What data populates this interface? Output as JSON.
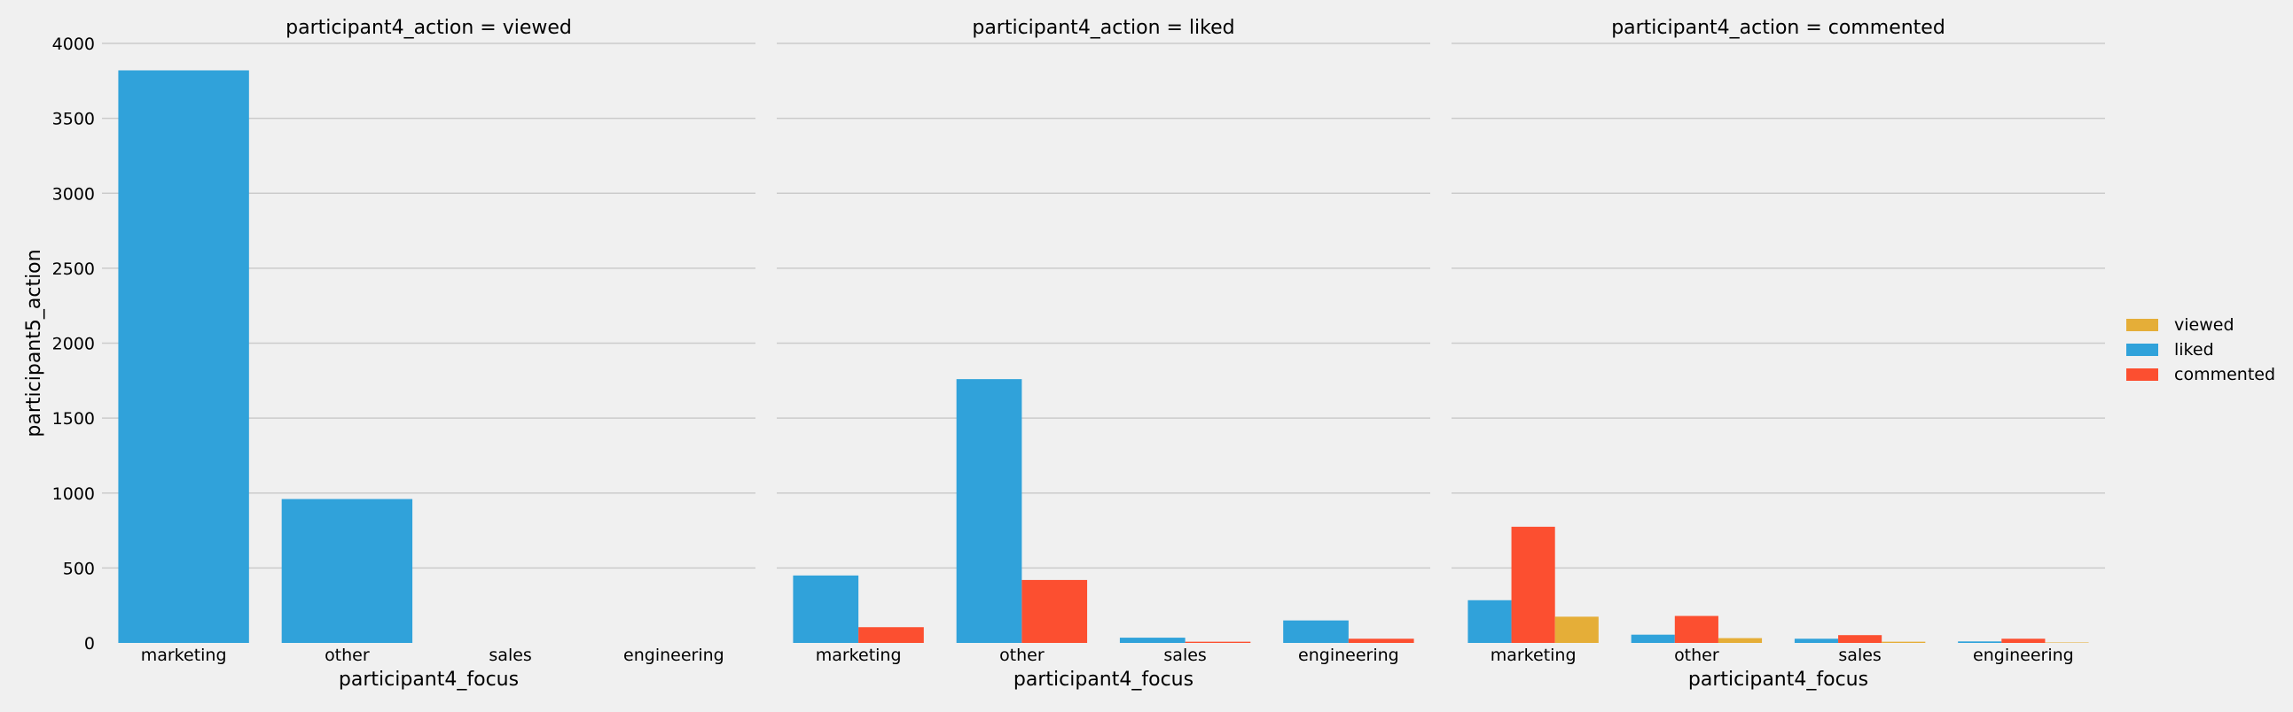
{
  "chart_data": {
    "type": "bar",
    "ylabel": "participant5_action",
    "ylim": [
      0,
      4000
    ],
    "yticks": [
      0,
      500,
      1000,
      1500,
      2000,
      2500,
      3000,
      3500,
      4000
    ],
    "categories": [
      "marketing",
      "other",
      "sales",
      "engineering"
    ],
    "legend": {
      "placement": "right",
      "entries": [
        "viewed",
        "liked",
        "commented"
      ]
    },
    "colors": {
      "viewed": "#e5ae38",
      "liked": "#30a2da",
      "commented": "#fc4f30",
      "grid": "#cbcbcb",
      "background": "#f0f0f0"
    },
    "hue_order": [
      "liked",
      "commented",
      "viewed"
    ],
    "panels": [
      {
        "title": "participant4_action = viewed",
        "xlabel": "participant4_focus",
        "series": [
          {
            "name": "liked",
            "values": [
              3820,
              960,
              0,
              0
            ]
          }
        ]
      },
      {
        "title": "participant4_action = liked",
        "xlabel": "participant4_focus",
        "series": [
          {
            "name": "liked",
            "values": [
              450,
              1760,
              35,
              150
            ]
          },
          {
            "name": "commented",
            "values": [
              105,
              420,
              8,
              28
            ]
          }
        ]
      },
      {
        "title": "participant4_action = commented",
        "xlabel": "participant4_focus",
        "series": [
          {
            "name": "liked",
            "values": [
              285,
              55,
              28,
              10
            ]
          },
          {
            "name": "commented",
            "values": [
              775,
              180,
              52,
              28
            ]
          },
          {
            "name": "viewed",
            "values": [
              175,
              32,
              8,
              3
            ]
          }
        ]
      }
    ]
  }
}
